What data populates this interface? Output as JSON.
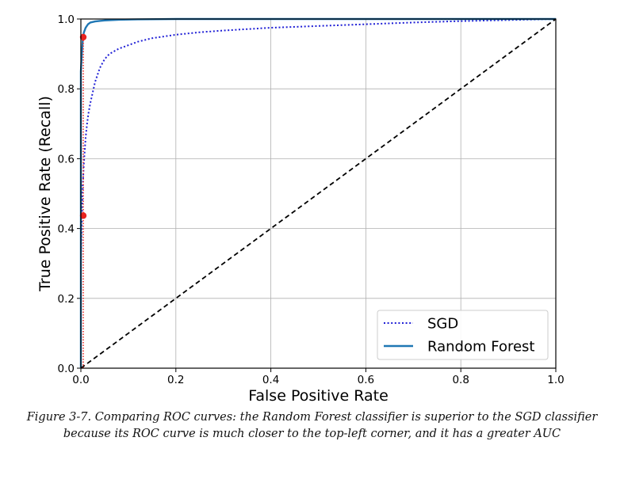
{
  "chart_data": {
    "type": "line",
    "xlabel": "False Positive Rate",
    "ylabel": "True Positive Rate (Recall)",
    "xlim": [
      0,
      1
    ],
    "ylim": [
      0,
      1
    ],
    "xticks": [
      "0.0",
      "0.2",
      "0.4",
      "0.6",
      "0.8",
      "1.0"
    ],
    "yticks": [
      "0.0",
      "0.2",
      "0.4",
      "0.6",
      "0.8",
      "1.0"
    ],
    "grid": true,
    "legend_position": "lower-right",
    "series": [
      {
        "name": "SGD",
        "style": "dotted",
        "color": "#1f1fd6",
        "x": [
          0,
          0,
          0.002,
          0.004,
          0.006,
          0.008,
          0.01,
          0.013,
          0.016,
          0.02,
          0.025,
          0.03,
          0.04,
          0.05,
          0.06,
          0.08,
          0.1,
          0.12,
          0.15,
          0.2,
          0.25,
          0.3,
          0.4,
          0.5,
          0.6,
          0.7,
          0.8,
          0.9,
          1.0
        ],
        "y": [
          0,
          0.3,
          0.43,
          0.52,
          0.58,
          0.62,
          0.66,
          0.7,
          0.73,
          0.76,
          0.79,
          0.82,
          0.86,
          0.885,
          0.9,
          0.915,
          0.925,
          0.935,
          0.945,
          0.955,
          0.962,
          0.967,
          0.975,
          0.98,
          0.985,
          0.99,
          0.994,
          0.997,
          1.0
        ]
      },
      {
        "name": "Random Forest",
        "style": "solid",
        "color": "#1f77b4",
        "x": [
          0,
          0,
          0.002,
          0.004,
          0.006,
          0.01,
          0.015,
          0.02,
          0.03,
          0.05,
          0.08,
          0.12,
          0.2,
          0.5,
          1.0
        ],
        "y": [
          0,
          0.85,
          0.9,
          0.94,
          0.96,
          0.975,
          0.985,
          0.99,
          0.993,
          0.996,
          0.998,
          0.999,
          1.0,
          1.0,
          1.0
        ]
      },
      {
        "name": "",
        "style": "dashed",
        "color": "#000000",
        "x": [
          0,
          1
        ],
        "y": [
          0,
          1
        ]
      }
    ],
    "annotations": [
      {
        "type": "point",
        "x": 0.005,
        "y": 0.948,
        "color": "#e8231f"
      },
      {
        "type": "point",
        "x": 0.005,
        "y": 0.437,
        "color": "#e8231f"
      },
      {
        "type": "vline",
        "x": 0.005,
        "y": [
          0,
          0.948
        ],
        "style": "dotted",
        "color": "#e8231f"
      }
    ]
  },
  "caption": {
    "line1": "Figure 3-7. Comparing ROC curves: the Random Forest classifier is superior to the SGD classifier",
    "line2": "because its ROC curve is much closer to the top-left corner, and it has a greater AUC"
  }
}
